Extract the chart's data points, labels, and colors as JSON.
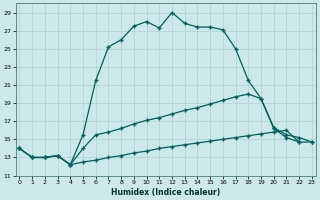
{
  "xlabel": "Humidex (Indice chaleur)",
  "bg_color": "#cce8e8",
  "grid_color": "#b0d0d0",
  "line_color": "#006060",
  "x_min": 0,
  "x_max": 23,
  "y_min": 11,
  "y_max": 30,
  "line1_x": [
    0,
    1,
    2,
    3,
    4,
    5,
    6,
    7,
    8,
    9,
    10,
    11,
    12,
    13,
    14,
    15,
    16,
    17,
    18,
    19,
    20,
    21,
    22,
    23
  ],
  "line1_y": [
    14.0,
    13.0,
    13.0,
    13.2,
    12.2,
    15.5,
    21.5,
    25.2,
    26.0,
    27.5,
    28.0,
    27.3,
    29.0,
    27.8,
    27.4,
    27.4,
    27.1,
    25.0,
    21.5,
    19.5,
    16.2,
    15.2,
    14.7,
    null
  ],
  "line2_x": [
    0,
    1,
    2,
    3,
    4,
    5,
    6,
    7,
    8,
    9,
    10,
    11,
    12,
    13,
    14,
    15,
    16,
    17,
    18,
    19,
    20,
    21,
    22,
    23
  ],
  "line2_y": [
    14.0,
    13.0,
    13.0,
    13.2,
    12.2,
    14.0,
    15.5,
    15.8,
    16.2,
    16.7,
    17.1,
    17.4,
    17.8,
    18.2,
    18.5,
    18.9,
    19.3,
    19.7,
    20.0,
    19.5,
    16.3,
    15.5,
    15.2,
    14.7
  ],
  "line3_x": [
    0,
    1,
    2,
    3,
    4,
    5,
    6,
    7,
    8,
    9,
    10,
    11,
    12,
    13,
    14,
    15,
    16,
    17,
    18,
    19,
    20,
    21,
    22,
    23
  ],
  "line3_y": [
    14.0,
    13.0,
    13.0,
    13.2,
    12.2,
    12.5,
    12.7,
    13.0,
    13.2,
    13.5,
    13.7,
    14.0,
    14.2,
    14.4,
    14.6,
    14.8,
    15.0,
    15.2,
    15.4,
    15.6,
    15.8,
    16.0,
    14.7,
    14.7
  ],
  "yticks": [
    11,
    13,
    15,
    17,
    19,
    21,
    23,
    25,
    27,
    29
  ],
  "xticks": [
    0,
    1,
    2,
    3,
    4,
    5,
    6,
    7,
    8,
    9,
    10,
    11,
    12,
    13,
    14,
    15,
    16,
    17,
    18,
    19,
    20,
    21,
    22,
    23
  ]
}
